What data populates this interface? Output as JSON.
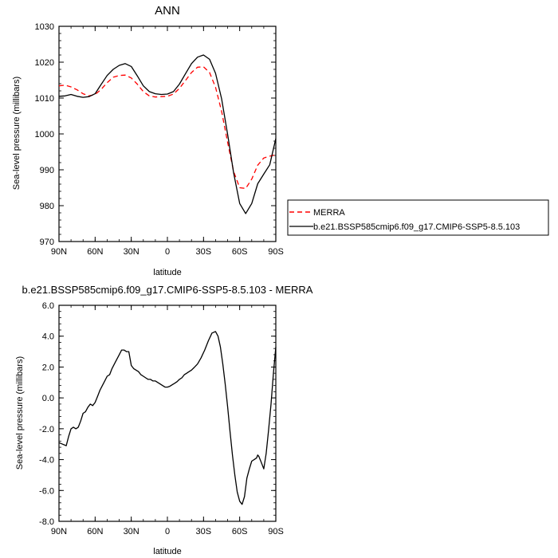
{
  "chart_data": [
    {
      "type": "line",
      "title": "ANN",
      "xlabel": "latitude",
      "ylabel": "Sea-level pressure (millibars)",
      "xlim": [
        90,
        -90
      ],
      "ylim": [
        970,
        1030
      ],
      "xticks": [
        90,
        60,
        30,
        0,
        -30,
        -60,
        -90
      ],
      "xtick_labels": [
        "90N",
        "60N",
        "30N",
        "0",
        "30S",
        "60S",
        "90S"
      ],
      "yticks": [
        970,
        980,
        990,
        1000,
        1010,
        1020,
        1030
      ],
      "ytick_labels": [
        "970",
        "980",
        "990",
        "1000",
        "1010",
        "1020",
        "1030"
      ],
      "legend": {
        "position": "right"
      },
      "series": [
        {
          "name": "MERRA",
          "color": "#ff0000",
          "dash": "dashed",
          "x": [
            90,
            85,
            80,
            75,
            70,
            65,
            60,
            55,
            50,
            45,
            40,
            35,
            30,
            25,
            20,
            15,
            10,
            5,
            0,
            -5,
            -10,
            -15,
            -20,
            -25,
            -30,
            -35,
            -40,
            -45,
            -50,
            -55,
            -60,
            -65,
            -70,
            -75,
            -80,
            -85,
            -90
          ],
          "values": [
            1013.4,
            1013.6,
            1013.1,
            1012.3,
            1011.2,
            1010.6,
            1011.0,
            1012.4,
            1014.3,
            1015.8,
            1016.3,
            1016.4,
            1015.6,
            1013.9,
            1011.8,
            1010.6,
            1010.3,
            1010.4,
            1010.5,
            1011.1,
            1012.7,
            1014.9,
            1017.1,
            1018.6,
            1018.7,
            1017.1,
            1013.0,
            1006.3,
            997.6,
            989.5,
            985.0,
            984.8,
            987.4,
            991.3,
            993.3,
            993.8,
            994.2
          ]
        },
        {
          "name": "b.e21.BSSP585cmip6.f09_g17.CMIP6-SSP5-8.5.103",
          "color": "#000000",
          "dash": "solid",
          "x": [
            90,
            85,
            80,
            75,
            70,
            65,
            60,
            55,
            50,
            45,
            40,
            35,
            30,
            25,
            20,
            15,
            10,
            5,
            0,
            -5,
            -10,
            -15,
            -20,
            -25,
            -30,
            -35,
            -40,
            -45,
            -50,
            -55,
            -60,
            -65,
            -70,
            -75,
            -80,
            -85,
            -90
          ],
          "values": [
            1010.5,
            1010.6,
            1011.0,
            1010.5,
            1010.2,
            1010.4,
            1011.2,
            1013.8,
            1016.3,
            1018.0,
            1019.1,
            1019.6,
            1018.8,
            1016.2,
            1013.4,
            1011.8,
            1011.2,
            1011.0,
            1011.1,
            1011.8,
            1013.9,
            1016.8,
            1019.6,
            1021.4,
            1022.0,
            1020.8,
            1016.9,
            1009.8,
            999.8,
            989.1,
            980.6,
            977.8,
            980.6,
            986.1,
            988.8,
            991.4,
            998.7
          ]
        }
      ]
    },
    {
      "type": "line",
      "title": "b.e21.BSSP585cmip6.f09_g17.CMIP6-SSP5-8.5.103 - MERRA",
      "xlabel": "latitude",
      "ylabel": "Sea-level pressure (millibars)",
      "xlim": [
        90,
        -90
      ],
      "ylim": [
        -8.0,
        6.0
      ],
      "xticks": [
        90,
        60,
        30,
        0,
        -30,
        -60,
        -90
      ],
      "xtick_labels": [
        "90N",
        "60N",
        "30N",
        "0",
        "30S",
        "60S",
        "90S"
      ],
      "yticks": [
        -8.0,
        -6.0,
        -4.0,
        -2.0,
        0.0,
        2.0,
        4.0,
        6.0
      ],
      "ytick_labels": [
        "-8.0",
        "-6.0",
        "-4.0",
        "-2.0",
        "0.0",
        "2.0",
        "4.0",
        "6.0"
      ],
      "series": [
        {
          "color": "#000000",
          "dash": "solid",
          "x": [
            90,
            87,
            84,
            82,
            80,
            78,
            76,
            74,
            72,
            70,
            68,
            66,
            64,
            62,
            60,
            58,
            56,
            54,
            52,
            50,
            48,
            46,
            44,
            42,
            40,
            38,
            36,
            34,
            32,
            30,
            28,
            26,
            24,
            22,
            20,
            18,
            16,
            14,
            12,
            10,
            8,
            6,
            4,
            2,
            0,
            -2,
            -4,
            -6,
            -8,
            -10,
            -12,
            -14,
            -16,
            -18,
            -20,
            -22,
            -25,
            -28,
            -31,
            -34,
            -37,
            -40,
            -42,
            -44,
            -46,
            -48,
            -50,
            -52,
            -54,
            -56,
            -58,
            -60,
            -62,
            -64,
            -65,
            -66,
            -68,
            -70,
            -72,
            -74,
            -75,
            -76,
            -78,
            -80,
            -82,
            -84,
            -86,
            -88,
            -90
          ],
          "values": [
            -2.9,
            -3.0,
            -3.1,
            -2.5,
            -2.0,
            -1.9,
            -2.0,
            -1.9,
            -1.5,
            -1.0,
            -0.9,
            -0.6,
            -0.4,
            -0.5,
            -0.3,
            0.1,
            0.5,
            0.8,
            1.1,
            1.4,
            1.5,
            1.9,
            2.2,
            2.5,
            2.8,
            3.1,
            3.1,
            3.0,
            3.0,
            2.1,
            1.9,
            1.8,
            1.7,
            1.5,
            1.4,
            1.3,
            1.2,
            1.2,
            1.1,
            1.1,
            1.0,
            0.9,
            0.8,
            0.7,
            0.7,
            0.75,
            0.85,
            0.95,
            1.05,
            1.2,
            1.3,
            1.5,
            1.6,
            1.7,
            1.8,
            1.95,
            2.2,
            2.6,
            3.1,
            3.7,
            4.2,
            4.3,
            4.0,
            3.3,
            2.2,
            0.9,
            -0.6,
            -2.2,
            -3.7,
            -5.0,
            -6.1,
            -6.7,
            -6.9,
            -6.4,
            -5.8,
            -5.2,
            -4.6,
            -4.1,
            -4.0,
            -3.9,
            -3.7,
            -3.8,
            -4.2,
            -4.6,
            -3.6,
            -2.1,
            -0.4,
            1.6,
            3.3
          ]
        }
      ]
    }
  ]
}
